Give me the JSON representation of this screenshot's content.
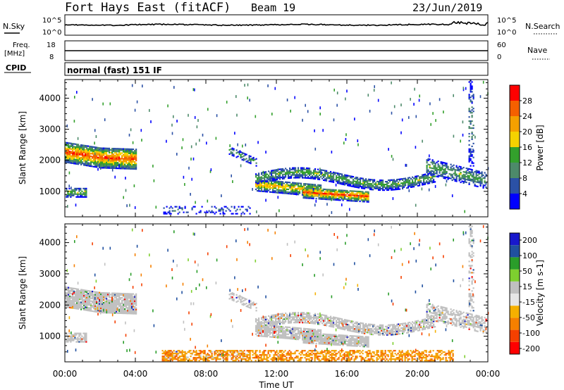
{
  "header": {
    "station": "Fort Hays East (fitACF)",
    "beam": "Beam 19",
    "date": "23/Jun/2019"
  },
  "noise_panel": {
    "left_label": "N.Sky",
    "right_label": "N.Search",
    "left_ticks": [
      "10^5",
      "10^0"
    ],
    "right_ticks": [
      "10^5",
      "10^0"
    ]
  },
  "freq_panel": {
    "left_label_1": "Freq.",
    "left_label_2": "[MHz]",
    "right_label": "Nave",
    "left_ticks": [
      "18",
      "8"
    ],
    "right_ticks": [
      "60",
      "0"
    ]
  },
  "cpid": {
    "label": "CPID",
    "value": "normal (fast) 151 IF"
  },
  "x_axis": {
    "title": "Time UT",
    "ticks": [
      "00:00",
      "04:00",
      "08:00",
      "12:00",
      "16:00",
      "20:00",
      "00:00"
    ]
  },
  "colors": {
    "power": [
      "#0000ff",
      "#2b51a6",
      "#4d8a6a",
      "#33a02c",
      "#f5d200",
      "#f5a000",
      "#f56000",
      "#ff0000"
    ],
    "velocity_neg": [
      "#e6e6e6",
      "#f5b000",
      "#f58000",
      "#f54000",
      "#ff0000"
    ],
    "velocity_pos": [
      "#c0c0c0",
      "#7ecf2f",
      "#2a9d2a",
      "#2050a0",
      "#1818cc"
    ]
  },
  "chart_data": [
    {
      "type": "heatmap",
      "name": "power",
      "xlabel": "Time UT",
      "ylabel": "Slant Range [km]",
      "xlim": [
        0,
        24
      ],
      "ylim": [
        180,
        4600
      ],
      "yticks": [
        1000,
        2000,
        3000,
        4000
      ],
      "colorbar": {
        "label": "Power [dB]",
        "min": 0,
        "max": 32,
        "tick_labels": [
          "4",
          "8",
          "12",
          "16",
          "20",
          "24",
          "28"
        ],
        "tick_values": [
          4,
          8,
          12,
          16,
          20,
          24,
          28
        ]
      },
      "echo_regions_approx": [
        {
          "t": [
            0.0,
            4.0
          ],
          "range_km": [
            1300,
            2500
          ],
          "peak_db": 28
        },
        {
          "t": [
            0.1,
            1.2
          ],
          "range_km": [
            800,
            1100
          ],
          "peak_db": 16
        },
        {
          "t": [
            9.3,
            24.0
          ],
          "range_km": [
            600,
            1800
          ],
          "peak_db": 28
        },
        {
          "t": [
            21.0,
            24.0
          ],
          "range_km": [
            800,
            2600
          ],
          "peak_db": 16
        }
      ]
    },
    {
      "type": "heatmap",
      "name": "velocity",
      "xlabel": "Time UT",
      "ylabel": "Slant Range [km]",
      "xlim": [
        0,
        24
      ],
      "ylim": [
        180,
        4600
      ],
      "yticks": [
        1000,
        2000,
        3000,
        4000
      ],
      "colorbar": {
        "label": "Velocity [m s-1]",
        "min": -250,
        "max": 250,
        "tick_labels": [
          "200",
          "100",
          "50",
          "15",
          "-15",
          "-50",
          "-100",
          "-200"
        ],
        "tick_values": [
          200,
          100,
          50,
          15,
          -15,
          -50,
          -100,
          -200
        ]
      }
    }
  ]
}
